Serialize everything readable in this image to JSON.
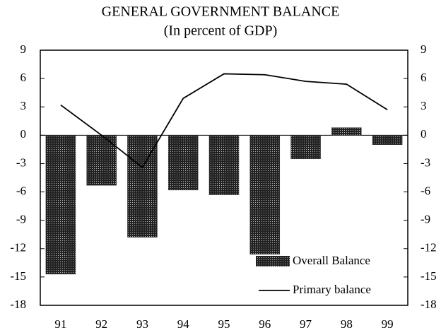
{
  "chart_data": {
    "type": "bar-line",
    "title": "GENERAL GOVERNMENT BALANCE",
    "subtitle": "(In percent of GDP)",
    "categories": [
      "91",
      "92",
      "93",
      "94",
      "95",
      "96",
      "97",
      "98",
      "99"
    ],
    "series": [
      {
        "name": "Overall Balance",
        "type": "bar",
        "color": "#333333",
        "values": [
          -14.7,
          -5.3,
          -10.8,
          -5.8,
          -6.3,
          -12.6,
          -2.5,
          0.8,
          -1.0
        ]
      },
      {
        "name": "Primary balance",
        "type": "line",
        "color": "#000000",
        "values": [
          3.2,
          0.0,
          -3.4,
          3.9,
          6.5,
          6.4,
          5.7,
          5.4,
          2.7
        ]
      }
    ],
    "ylim": [
      -18,
      9
    ],
    "yticks": [
      -18,
      -15,
      -12,
      -9,
      -6,
      -3,
      0,
      3,
      6,
      9
    ],
    "legend": "bottom-right",
    "grid": false
  }
}
